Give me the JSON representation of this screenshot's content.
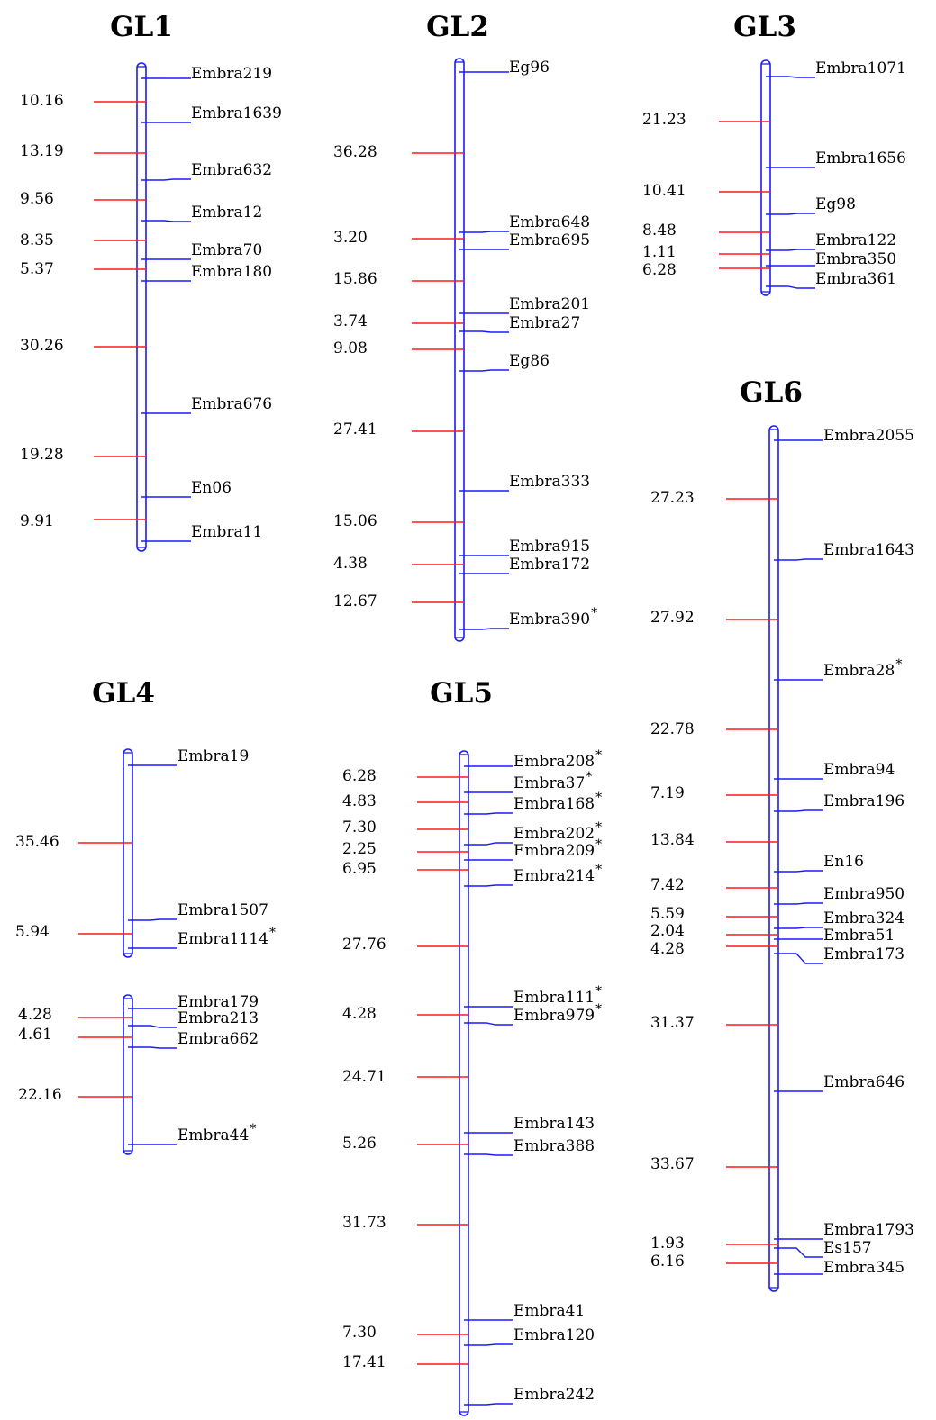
{
  "colors": {
    "chromosome": "#1a1aff",
    "interval": "#ff1a1a",
    "text": "#000000"
  },
  "groups": [
    {
      "name": "GL1",
      "markers": [
        {
          "name": "Embra219",
          "star": false
        },
        {
          "name": "Embra1639",
          "star": false
        },
        {
          "name": "Embra632",
          "star": false
        },
        {
          "name": "Embra12",
          "star": false
        },
        {
          "name": "Embra70",
          "star": false
        },
        {
          "name": "Embra180",
          "star": false
        },
        {
          "name": "Embra676",
          "star": false
        },
        {
          "name": "En06",
          "star": false
        },
        {
          "name": "Embra11",
          "star": false
        }
      ],
      "distances": [
        "10.16",
        "13.19",
        "9.56",
        "8.35",
        "5.37",
        "30.26",
        "19.28",
        "9.91"
      ]
    },
    {
      "name": "GL2",
      "markers": [
        {
          "name": "Eg96",
          "star": false
        },
        {
          "name": "Embra648",
          "star": false
        },
        {
          "name": "Embra695",
          "star": false
        },
        {
          "name": "Embra201",
          "star": false
        },
        {
          "name": "Embra27",
          "star": false
        },
        {
          "name": "Eg86",
          "star": false
        },
        {
          "name": "Embra333",
          "star": false
        },
        {
          "name": "Embra915",
          "star": false
        },
        {
          "name": "Embra172",
          "star": false
        },
        {
          "name": "Embra390",
          "star": true
        }
      ],
      "distances": [
        "36.28",
        "3.20",
        "15.86",
        "3.74",
        "9.08",
        "27.41",
        "15.06",
        "4.38",
        "12.67"
      ]
    },
    {
      "name": "GL3",
      "markers": [
        {
          "name": "Embra1071",
          "star": false
        },
        {
          "name": "Embra1656",
          "star": false
        },
        {
          "name": "Eg98",
          "star": false
        },
        {
          "name": "Embra122",
          "star": false
        },
        {
          "name": "Embra350",
          "star": false
        },
        {
          "name": "Embra361",
          "star": false
        }
      ],
      "distances": [
        "21.23",
        "10.41",
        "8.48",
        "1.11",
        "6.28"
      ]
    },
    {
      "name": "GL4",
      "segments": [
        {
          "markers": [
            {
              "name": "Embra19",
              "star": false
            },
            {
              "name": "Embra1507",
              "star": false
            },
            {
              "name": "Embra1114",
              "star": true
            }
          ],
          "distances": [
            "35.46",
            "5.94"
          ]
        },
        {
          "markers": [
            {
              "name": "Embra179",
              "star": false
            },
            {
              "name": "Embra213",
              "star": false
            },
            {
              "name": "Embra662",
              "star": false
            },
            {
              "name": "Embra44",
              "star": true
            }
          ],
          "distances": [
            "4.28",
            "4.61",
            "22.16"
          ]
        }
      ]
    },
    {
      "name": "GL5",
      "markers": [
        {
          "name": "Embra208",
          "star": true
        },
        {
          "name": "Embra37",
          "star": true
        },
        {
          "name": "Embra168",
          "star": true
        },
        {
          "name": "Embra202",
          "star": true
        },
        {
          "name": "Embra209",
          "star": true
        },
        {
          "name": "Embra214",
          "star": true
        },
        {
          "name": "Embra111",
          "star": true
        },
        {
          "name": "Embra979",
          "star": true
        },
        {
          "name": "Embra143",
          "star": false
        },
        {
          "name": "Embra388",
          "star": false
        },
        {
          "name": "Embra41",
          "star": false
        },
        {
          "name": "Embra120",
          "star": false
        },
        {
          "name": "Embra242",
          "star": false
        }
      ],
      "distances": [
        "6.28",
        "4.83",
        "7.30",
        "2.25",
        "6.95",
        "27.76",
        "4.28",
        "24.71",
        "5.26",
        "31.73",
        "7.30",
        "17.41"
      ]
    },
    {
      "name": "GL6",
      "markers": [
        {
          "name": "Embra2055",
          "star": false
        },
        {
          "name": "Embra1643",
          "star": false
        },
        {
          "name": "Embra28",
          "star": true
        },
        {
          "name": "Embra94",
          "star": false
        },
        {
          "name": "Embra196",
          "star": false
        },
        {
          "name": "En16",
          "star": false
        },
        {
          "name": "Embra950",
          "star": false
        },
        {
          "name": "Embra324",
          "star": false
        },
        {
          "name": "Embra51",
          "star": false
        },
        {
          "name": "Embra173",
          "star": false
        },
        {
          "name": "Embra646",
          "star": false
        },
        {
          "name": "Embra1793",
          "star": false
        },
        {
          "name": "Es157",
          "star": false
        },
        {
          "name": "Embra345",
          "star": false
        }
      ],
      "distances": [
        "27.23",
        "27.92",
        "22.78",
        "7.19",
        "13.84",
        "7.42",
        "5.59",
        "2.04",
        "4.28",
        "31.37",
        "33.67",
        "1.93",
        "6.16"
      ]
    }
  ]
}
